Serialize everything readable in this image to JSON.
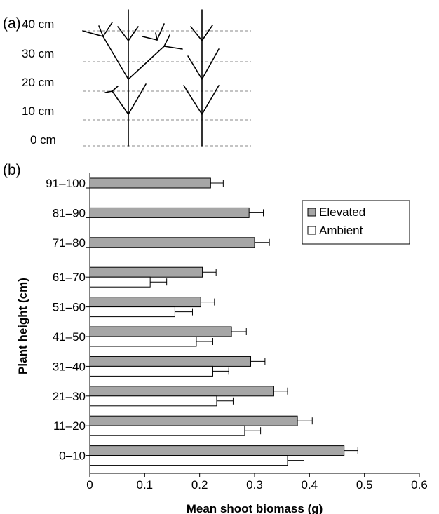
{
  "panel_a": {
    "label": "(a)",
    "height_labels": [
      "40 cm",
      "30 cm",
      "20 cm",
      "10 cm",
      "0 cm"
    ]
  },
  "chart_data": {
    "type": "bar",
    "orientation": "horizontal",
    "panel_label": "(b)",
    "title": "",
    "xlabel": "Mean shoot biomass (g)",
    "ylabel": "Plant height (cm)",
    "xlim": [
      0,
      0.6
    ],
    "x_ticks": [
      "0",
      "0.1",
      "0.2",
      "0.3",
      "0.4",
      "0.5",
      "0.6"
    ],
    "categories": [
      "91–100",
      "81–90",
      "71–80",
      "61–70",
      "51–60",
      "41–50",
      "31–40",
      "21–30",
      "11–20",
      "0–10"
    ],
    "series": [
      {
        "name": "Elevated",
        "color": "#a6a6a6",
        "values": [
          0.22,
          0.29,
          0.3,
          0.205,
          0.202,
          0.258,
          0.293,
          0.335,
          0.378,
          0.463
        ],
        "errors": [
          0.023,
          0.026,
          0.027,
          0.025,
          0.025,
          0.027,
          0.026,
          0.025,
          0.027,
          0.025
        ]
      },
      {
        "name": "Ambient",
        "color": "#ffffff",
        "values": [
          null,
          null,
          null,
          0.11,
          0.155,
          0.194,
          0.224,
          0.231,
          0.282,
          0.36
        ],
        "errors": [
          null,
          null,
          null,
          0.03,
          0.032,
          0.03,
          0.029,
          0.03,
          0.029,
          0.03
        ]
      }
    ],
    "legend_position": "top-right",
    "grid": false
  }
}
